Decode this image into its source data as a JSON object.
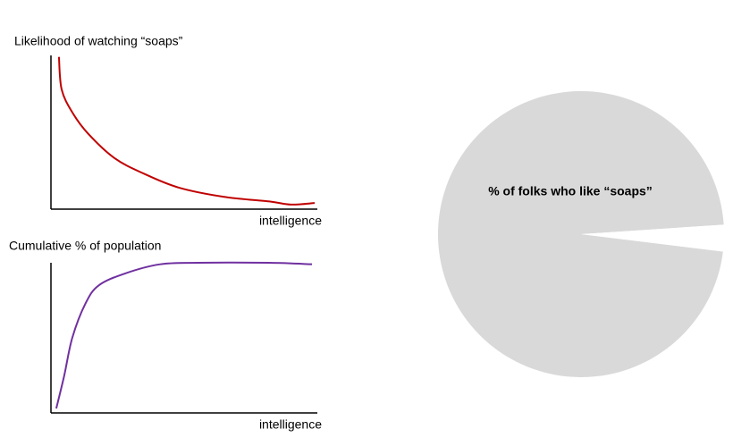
{
  "chart_data": [
    {
      "type": "line",
      "ylabel": "Likelihood of watching “soaps”",
      "xlabel": "intelligence",
      "x": [
        3,
        4,
        8,
        14,
        24,
        35,
        48,
        65,
        82,
        90,
        99
      ],
      "values": [
        99,
        78,
        63,
        49,
        33,
        23,
        14,
        8,
        5,
        3,
        4
      ],
      "color": "#c00000",
      "xlim": [
        0,
        100
      ],
      "ylim": [
        0,
        100
      ]
    },
    {
      "type": "line",
      "ylabel": "Cumulative % of population",
      "xlabel": "intelligence",
      "x": [
        2,
        5,
        8,
        13,
        18,
        28,
        41,
        55,
        82,
        98
      ],
      "values": [
        3,
        25,
        50,
        73,
        85,
        93,
        99,
        100,
        100,
        99
      ],
      "color": "#7030a0",
      "xlim": [
        0,
        100
      ],
      "ylim": [
        0,
        100
      ]
    },
    {
      "type": "pie",
      "categories": [
        "% of folks who like “soaps”",
        null
      ],
      "values": [
        97,
        3
      ],
      "colors": [
        "#d9d9d9",
        "#ffffff"
      ]
    }
  ]
}
